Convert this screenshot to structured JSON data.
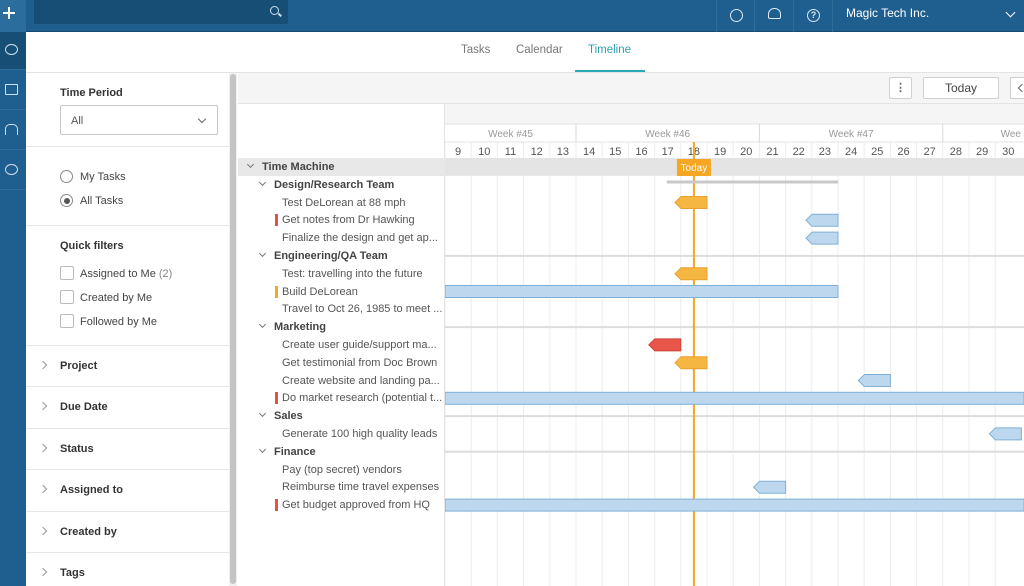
{
  "topbar": {
    "search": {
      "placeholder": "",
      "value": ""
    },
    "org_name": "Magic Tech Inc."
  },
  "tabs": [
    {
      "label": "Tasks"
    },
    {
      "label": "Calendar"
    },
    {
      "label": "Timeline"
    }
  ],
  "active_tab": "Timeline",
  "sidebar": {
    "time_period": {
      "label": "Time Period",
      "value": "All"
    },
    "task_scope": {
      "options": [
        {
          "label": "My Tasks",
          "checked": false
        },
        {
          "label": "All Tasks",
          "checked": true
        }
      ]
    },
    "quick_filters": {
      "label": "Quick filters",
      "items": [
        {
          "label": "Assigned to Me",
          "count": "(2)"
        },
        {
          "label": "Created by Me",
          "count": ""
        },
        {
          "label": "Followed by Me",
          "count": ""
        }
      ]
    },
    "sections": [
      "Project",
      "Due Date",
      "Status",
      "Assigned to",
      "Created by",
      "Tags"
    ]
  },
  "toolbar": {
    "more": "⋮",
    "today": "Today"
  },
  "timeline": {
    "weeks": [
      {
        "label": "Week #45"
      },
      {
        "label": "Week #46"
      },
      {
        "label": "Week #47"
      },
      {
        "label": "Wee"
      }
    ],
    "days": [
      "9",
      "10",
      "11",
      "12",
      "13",
      "14",
      "15",
      "16",
      "17",
      "18",
      "19",
      "20",
      "21",
      "22",
      "23",
      "24",
      "25",
      "26",
      "27",
      "28",
      "29",
      "30"
    ],
    "today_label": "Today",
    "today_day": "18"
  },
  "tasks": [
    {
      "type": "project",
      "label": "Time Machine"
    },
    {
      "type": "section",
      "label": "Design/Research Team"
    },
    {
      "type": "task",
      "label": "Test DeLorean at 88 mph",
      "flag": "",
      "marker": {
        "day": 18,
        "color": "#f5b642"
      }
    },
    {
      "type": "task",
      "label": "Get notes from Dr Hawking",
      "flag": "#e0534a",
      "marker": {
        "day": 23,
        "color": "#bcd7ee"
      }
    },
    {
      "type": "task",
      "label": "Finalize the design and get ap...",
      "flag": "",
      "marker": {
        "day": 23,
        "color": "#bcd7ee"
      }
    },
    {
      "type": "section",
      "label": "Engineering/QA Team"
    },
    {
      "type": "task",
      "label": "Test: travelling into the future",
      "flag": "",
      "marker": {
        "day": 18,
        "color": "#f5b642"
      }
    },
    {
      "type": "task",
      "label": "Build DeLorean",
      "flag": "#f5a623",
      "bar": {
        "start": 9,
        "end": 23,
        "color": "#bcd7ee"
      }
    },
    {
      "type": "task",
      "label": "Travel to Oct 26, 1985 to meet ...",
      "flag": ""
    },
    {
      "type": "section",
      "label": "Marketing"
    },
    {
      "type": "task",
      "label": "Create user guide/support ma...",
      "flag": "",
      "marker": {
        "day": 17,
        "color": "#e8564b"
      }
    },
    {
      "type": "task",
      "label": "Get testimonial from Doc Brown",
      "flag": "",
      "marker": {
        "day": 18,
        "color": "#f5b642"
      }
    },
    {
      "type": "task",
      "label": "Create website and landing pa...",
      "flag": "",
      "marker": {
        "day": 25,
        "color": "#bcd7ee"
      }
    },
    {
      "type": "task",
      "label": "Do market research (potential t...",
      "flag": "#e0534a",
      "bar": {
        "start": 9,
        "end": 31,
        "color": "#bcd7ee"
      }
    },
    {
      "type": "section",
      "label": "Sales"
    },
    {
      "type": "task",
      "label": "Generate 100 high quality leads",
      "flag": "",
      "marker": {
        "day": 30,
        "color": "#bcd7ee"
      }
    },
    {
      "type": "section",
      "label": "Finance"
    },
    {
      "type": "task",
      "label": "Pay (top secret) vendors",
      "flag": ""
    },
    {
      "type": "task",
      "label": "Reimburse time travel expenses",
      "flag": "",
      "marker": {
        "day": 21,
        "color": "#bcd7ee"
      }
    },
    {
      "type": "task",
      "label": "Get budget approved from HQ",
      "flag": "#e0534a",
      "bar": {
        "start": 9,
        "end": 31,
        "color": "#bcd7ee"
      }
    }
  ]
}
